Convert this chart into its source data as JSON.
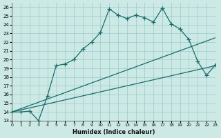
{
  "title": "",
  "xlabel": "Humidex (Indice chaleur)",
  "xlim": [
    0,
    23
  ],
  "ylim": [
    13,
    26.5
  ],
  "xticks": [
    0,
    1,
    2,
    3,
    4,
    5,
    6,
    7,
    8,
    9,
    10,
    11,
    12,
    13,
    14,
    15,
    16,
    17,
    18,
    19,
    20,
    21,
    22,
    23
  ],
  "yticks": [
    13,
    14,
    15,
    16,
    17,
    18,
    19,
    20,
    21,
    22,
    23,
    24,
    25,
    26
  ],
  "bg_color": "#cce9e6",
  "grid_color": "#99ccc8",
  "line_color": "#1a6b6b",
  "line1_x": [
    0,
    1,
    2,
    3,
    4,
    5,
    6,
    7,
    8,
    9,
    10,
    11,
    12,
    13,
    14,
    15,
    16,
    17,
    18,
    19,
    20,
    21,
    22,
    23
  ],
  "line1_y": [
    14.0,
    14.0,
    14.1,
    13.0,
    15.8,
    19.3,
    19.5,
    20.0,
    21.2,
    22.0,
    23.1,
    25.8,
    25.1,
    24.7,
    25.1,
    24.8,
    24.3,
    25.9,
    24.1,
    23.5,
    22.3,
    19.8,
    18.2,
    19.4
  ],
  "line2_x": [
    0,
    23
  ],
  "line2_y": [
    14.0,
    22.5
  ],
  "line3_x": [
    0,
    23
  ],
  "line3_y": [
    14.0,
    19.3
  ],
  "marker": "+",
  "markersize": 4,
  "linewidth": 0.9
}
